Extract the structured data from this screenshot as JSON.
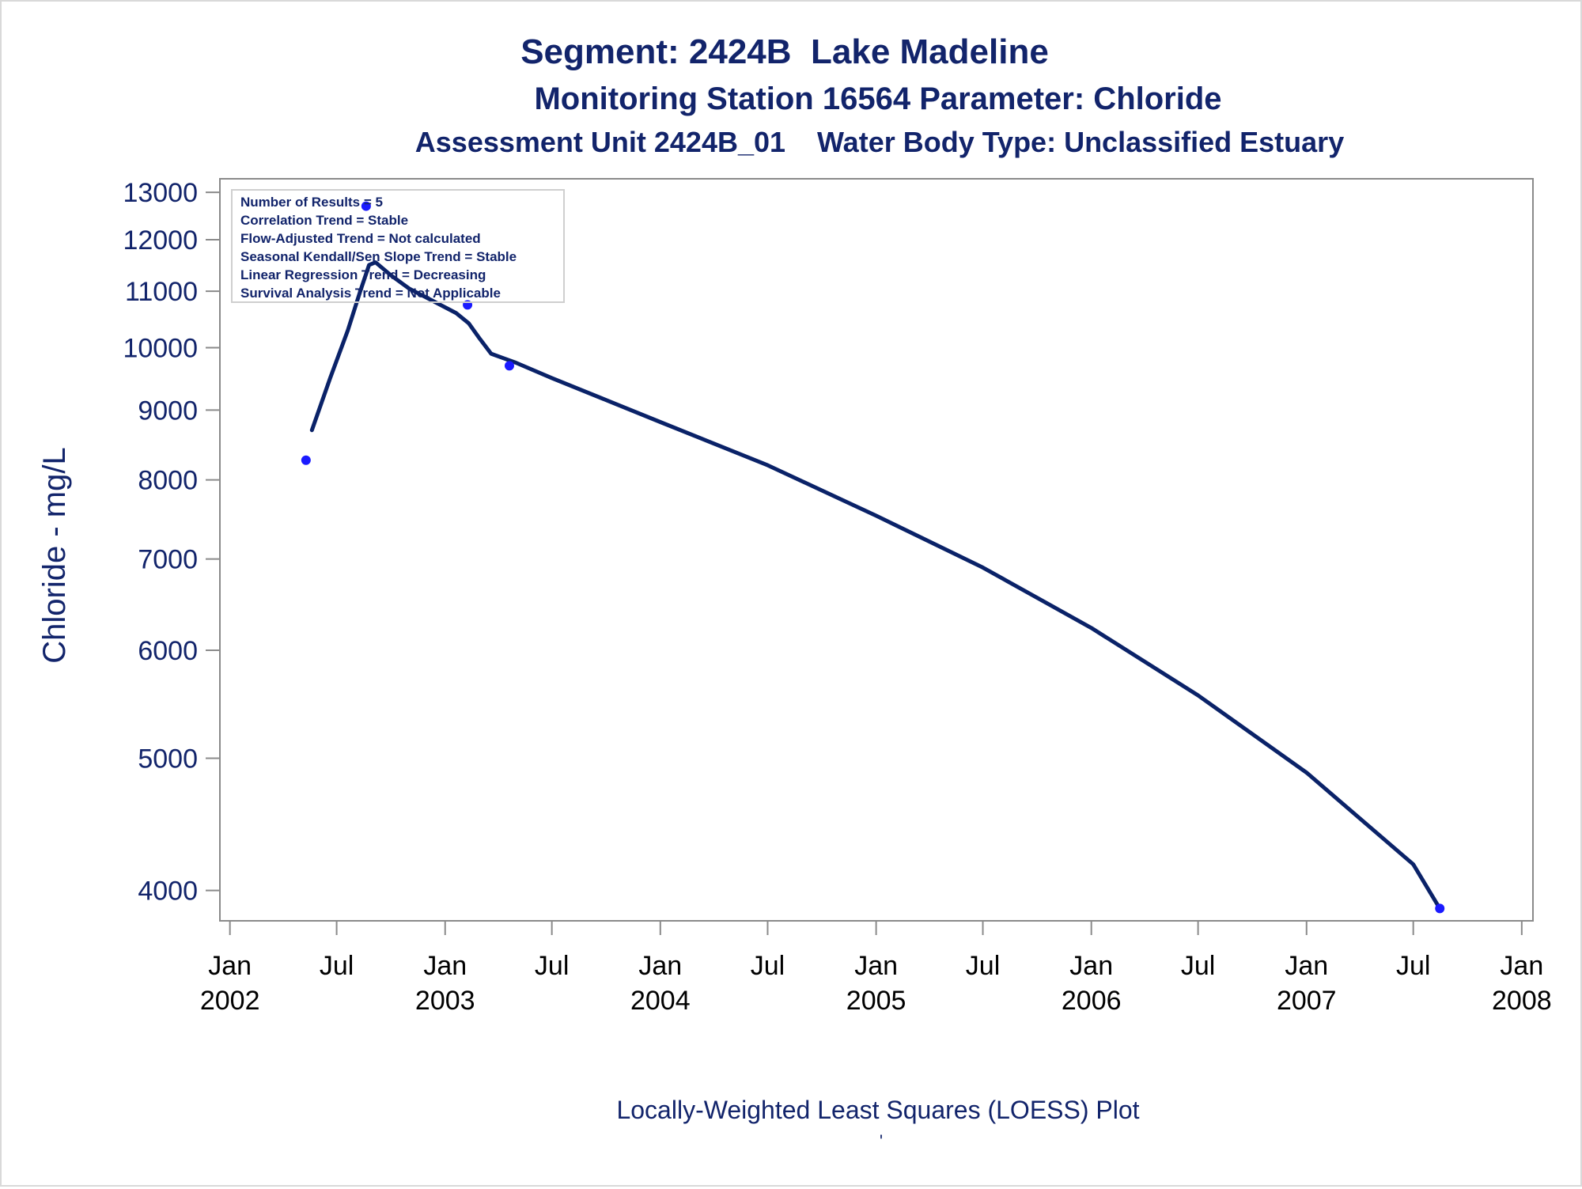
{
  "chart_data": {
    "type": "scatter",
    "title": "Segment: 2424B  Lake Madeline",
    "subtitle": "Monitoring Station 16564 Parameter: Chloride",
    "subtitle2": "Assessment Unit 2424B_01    Water Body Type: Unclassified Estuary",
    "ylabel": "Chloride - mg/L",
    "footer": "Locally-Weighted Least Squares (LOESS) Plot",
    "footer_mark": "'",
    "y_scale": "log",
    "ylim": [
      3800,
      13300
    ],
    "xlim": [
      "2001-12-15",
      "2008-01-20"
    ],
    "y_ticks": [
      13000,
      12000,
      11000,
      10000,
      9000,
      8000,
      7000,
      6000,
      5000,
      4000
    ],
    "x_ticks": [
      {
        "date": "2002-01-01",
        "label1": "Jan",
        "label2": "2002"
      },
      {
        "date": "2002-07-01",
        "label1": "Jul",
        "label2": ""
      },
      {
        "date": "2003-01-01",
        "label1": "Jan",
        "label2": "2003"
      },
      {
        "date": "2003-07-01",
        "label1": "Jul",
        "label2": ""
      },
      {
        "date": "2004-01-01",
        "label1": "Jan",
        "label2": "2004"
      },
      {
        "date": "2004-07-01",
        "label1": "Jul",
        "label2": ""
      },
      {
        "date": "2005-01-01",
        "label1": "Jan",
        "label2": "2005"
      },
      {
        "date": "2005-07-01",
        "label1": "Jul",
        "label2": ""
      },
      {
        "date": "2006-01-01",
        "label1": "Jan",
        "label2": "2006"
      },
      {
        "date": "2006-07-01",
        "label1": "Jul",
        "label2": ""
      },
      {
        "date": "2007-01-01",
        "label1": "Jan",
        "label2": "2007"
      },
      {
        "date": "2007-07-01",
        "label1": "Jul",
        "label2": ""
      },
      {
        "date": "2008-01-01",
        "label1": "Jan",
        "label2": "2008"
      }
    ],
    "points": [
      {
        "x": "2002-05-10",
        "y": 8270
      },
      {
        "x": "2002-08-20",
        "y": 12700
      },
      {
        "x": "2003-02-08",
        "y": 10750
      },
      {
        "x": "2003-04-20",
        "y": 9700
      },
      {
        "x": "2007-08-15",
        "y": 3880
      }
    ],
    "loess_curve": [
      {
        "x": "2002-05-20",
        "y": 8700
      },
      {
        "x": "2002-06-20",
        "y": 9500
      },
      {
        "x": "2002-07-20",
        "y": 10300
      },
      {
        "x": "2002-08-10",
        "y": 11000
      },
      {
        "x": "2002-08-25",
        "y": 11500
      },
      {
        "x": "2002-09-05",
        "y": 11550
      },
      {
        "x": "2002-10-01",
        "y": 11300
      },
      {
        "x": "2002-11-01",
        "y": 11050
      },
      {
        "x": "2002-12-15",
        "y": 10800
      },
      {
        "x": "2003-01-20",
        "y": 10600
      },
      {
        "x": "2003-02-10",
        "y": 10420
      },
      {
        "x": "2003-03-01",
        "y": 10150
      },
      {
        "x": "2003-03-20",
        "y": 9900
      },
      {
        "x": "2003-05-01",
        "y": 9750
      },
      {
        "x": "2003-07-01",
        "y": 9500
      },
      {
        "x": "2004-01-01",
        "y": 8820
      },
      {
        "x": "2004-07-01",
        "y": 8200
      },
      {
        "x": "2005-01-01",
        "y": 7530
      },
      {
        "x": "2005-07-01",
        "y": 6900
      },
      {
        "x": "2006-01-01",
        "y": 6230
      },
      {
        "x": "2006-07-01",
        "y": 5560
      },
      {
        "x": "2007-01-01",
        "y": 4880
      },
      {
        "x": "2007-07-01",
        "y": 4180
      },
      {
        "x": "2007-08-15",
        "y": 3880
      }
    ],
    "stats_box": [
      "Number of Results = 5",
      "Correlation Trend = Stable",
      "Flow-Adjusted Trend = Not calculated",
      "Seasonal Kendall/Sen Slope Trend = Stable",
      "Linear Regression Trend = Decreasing",
      "Survival Analysis Trend = Not Applicable"
    ],
    "colors": {
      "title": "#12246b",
      "curve": "#0a2268",
      "points": "#1a1aff",
      "axis": "#8a8a8a",
      "tick_x": "#000000"
    },
    "grid": false,
    "legend": "top-left"
  }
}
